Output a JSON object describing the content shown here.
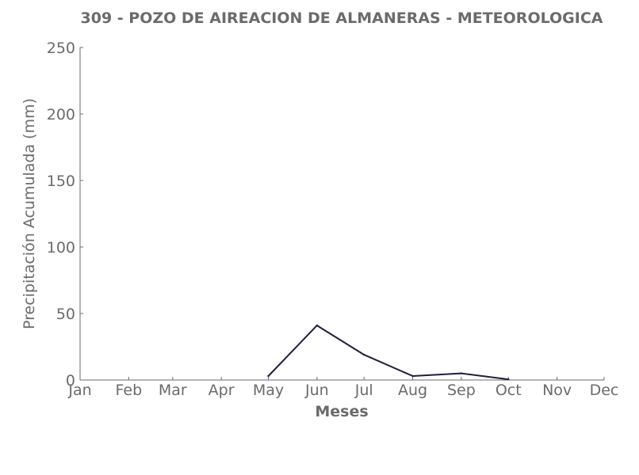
{
  "chart_data": {
    "type": "line",
    "title": "309 - POZO DE AIREACION DE ALMANERAS - METEOROLOGICA",
    "xlabel": "Meses",
    "ylabel": "Precipitación Acumulada (mm)",
    "categories": [
      "Jan",
      "Feb",
      "Mar",
      "Apr",
      "May",
      "Jun",
      "Jul",
      "Aug",
      "Sep",
      "Oct",
      "Nov",
      "Dec"
    ],
    "x_days": [
      0,
      31,
      59,
      90,
      120,
      151,
      181,
      212,
      243,
      273,
      304,
      334
    ],
    "x_max": 334,
    "ylim": [
      0,
      250
    ],
    "yticks": [
      0,
      50,
      100,
      150,
      200,
      250
    ],
    "grid": false,
    "series": [
      {
        "x": [
          "May",
          "Jun",
          "Jul",
          "Aug",
          "Sep",
          "Oct"
        ],
        "values": [
          3,
          41,
          19,
          3,
          5,
          0.5
        ],
        "color": "#1f1f3d"
      }
    ]
  }
}
